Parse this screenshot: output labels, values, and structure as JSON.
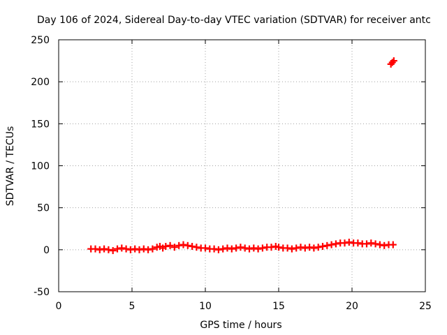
{
  "chart_data": {
    "type": "scatter",
    "title": "Day 106 of 2024, Sidereal Day-to-day VTEC variation (SDTVAR) for receiver antc",
    "xlabel": "GPS time / hours",
    "ylabel": "SDTVAR / TECUs",
    "xlim": [
      0,
      25
    ],
    "ylim": [
      -50,
      250
    ],
    "xticks": [
      0,
      5,
      10,
      15,
      20,
      25
    ],
    "yticks": [
      -50,
      0,
      50,
      100,
      150,
      200,
      250
    ],
    "grid": true,
    "marker": "plus",
    "color": "#ff0000",
    "series": [
      {
        "name": "SDTVAR",
        "x": [
          2.2,
          2.5,
          2.8,
          3.1,
          3.4,
          3.7,
          4.0,
          4.3,
          4.6,
          4.9,
          5.2,
          5.5,
          5.8,
          6.1,
          6.4,
          6.7,
          6.9,
          7.1,
          7.3,
          7.6,
          7.9,
          8.2,
          8.5,
          8.8,
          9.1,
          9.4,
          9.7,
          10.0,
          10.3,
          10.6,
          10.9,
          11.2,
          11.5,
          11.8,
          12.1,
          12.4,
          12.7,
          13.0,
          13.3,
          13.6,
          13.9,
          14.2,
          14.5,
          14.8,
          15.0,
          15.3,
          15.6,
          15.9,
          16.2,
          16.5,
          16.8,
          17.1,
          17.4,
          17.7,
          18.0,
          18.3,
          18.6,
          18.9,
          19.2,
          19.5,
          19.8,
          20.1,
          20.4,
          20.7,
          21.0,
          21.3,
          21.6,
          21.9,
          22.2,
          22.5,
          22.8,
          22.65,
          22.75,
          22.85
        ],
        "y": [
          1,
          1,
          0,
          1,
          0,
          -1,
          1,
          2,
          1,
          0,
          1,
          0,
          1,
          0,
          1,
          3,
          4,
          2,
          4,
          5,
          3,
          5,
          6,
          5,
          4,
          3,
          2,
          2,
          1,
          1,
          0,
          1,
          2,
          1,
          2,
          3,
          2,
          1,
          2,
          1,
          2,
          3,
          3,
          4,
          3,
          2,
          2,
          1,
          2,
          3,
          2,
          3,
          2,
          3,
          4,
          5,
          6,
          7,
          8,
          8,
          9,
          8,
          8,
          7,
          7,
          8,
          7,
          6,
          5,
          6,
          6,
          221,
          223,
          225
        ]
      }
    ]
  }
}
